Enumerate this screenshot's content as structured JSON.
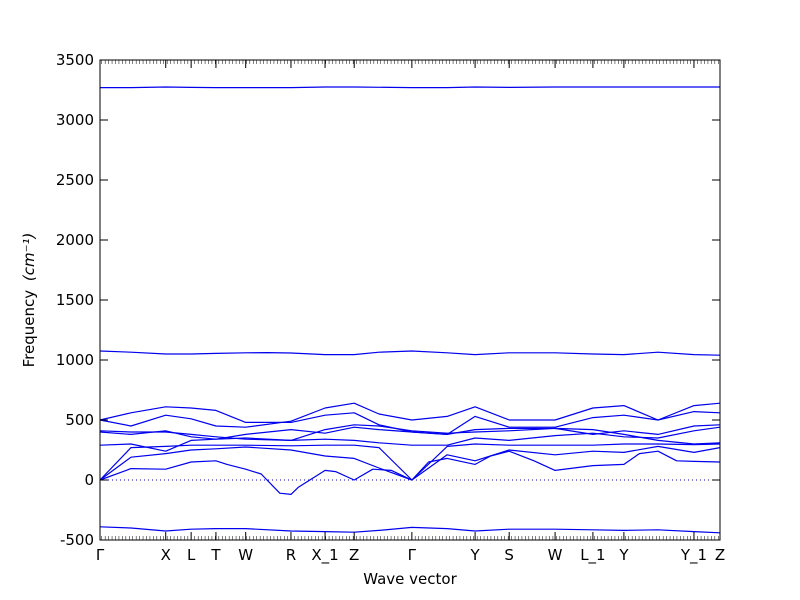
{
  "chart_data": {
    "type": "line",
    "title": "",
    "xlabel": "Wave vector",
    "ylabel": "Frequency",
    "ylabel_unit": "(cm⁻¹)",
    "ylim": [
      -500,
      3500
    ],
    "yticks": [
      -500,
      0,
      500,
      1000,
      1500,
      2000,
      2500,
      3000,
      3500
    ],
    "xlim": [
      0,
      1
    ],
    "kpoints": [
      {
        "label": "Γ",
        "x": 0.0
      },
      {
        "label": "X",
        "x": 0.106
      },
      {
        "label": "L",
        "x": 0.147
      },
      {
        "label": "T",
        "x": 0.187
      },
      {
        "label": "W",
        "x": 0.235
      },
      {
        "label": "R",
        "x": 0.308
      },
      {
        "label": "X_1",
        "x": 0.363
      },
      {
        "label": "Z",
        "x": 0.41
      },
      {
        "label": "Γ",
        "x": 0.503
      },
      {
        "label": "Y",
        "x": 0.605
      },
      {
        "label": "S",
        "x": 0.66
      },
      {
        "label": "W",
        "x": 0.734
      },
      {
        "label": "L_1",
        "x": 0.795
      },
      {
        "label": "Y",
        "x": 0.845
      },
      {
        "label": "Y_1",
        "x": 0.958
      },
      {
        "label": "Z",
        "x": 1.0
      }
    ],
    "zero_line": true,
    "series_color": "#0000ee",
    "series": [
      {
        "x": [
          0,
          0.05,
          0.106,
          0.147,
          0.187,
          0.235,
          0.308,
          0.363,
          0.41,
          0.503,
          0.56,
          0.605,
          0.66,
          0.734,
          0.795,
          0.845,
          0.9,
          0.958,
          1.0
        ],
        "values": [
          3270,
          3270,
          3275,
          3272,
          3270,
          3270,
          3270,
          3275,
          3275,
          3270,
          3270,
          3275,
          3272,
          3275,
          3275,
          3275,
          3275,
          3275,
          3275
        ]
      },
      {
        "x": [
          0,
          0.05,
          0.106,
          0.147,
          0.187,
          0.235,
          0.27,
          0.308,
          0.363,
          0.41,
          0.45,
          0.503,
          0.56,
          0.605,
          0.66,
          0.734,
          0.795,
          0.845,
          0.9,
          0.958,
          1.0
        ],
        "values": [
          1075,
          1065,
          1050,
          1050,
          1055,
          1060,
          1062,
          1058,
          1045,
          1045,
          1065,
          1075,
          1060,
          1045,
          1060,
          1060,
          1050,
          1045,
          1065,
          1045,
          1040
        ]
      },
      {
        "x": [
          0,
          0.05,
          0.106,
          0.147,
          0.187,
          0.235,
          0.308,
          0.363,
          0.41,
          0.45,
          0.503,
          0.56,
          0.605,
          0.66,
          0.734,
          0.795,
          0.845,
          0.9,
          0.958,
          1.0
        ],
        "values": [
          -390,
          -400,
          -425,
          -410,
          -405,
          -405,
          -425,
          -430,
          -435,
          -420,
          -395,
          -405,
          -425,
          -410,
          -410,
          -415,
          -420,
          -415,
          -430,
          -440
        ]
      },
      {
        "x": [
          0,
          0.05,
          0.106,
          0.147,
          0.187,
          0.205,
          0.235,
          0.26,
          0.29,
          0.308,
          0.32,
          0.363,
          0.38,
          0.41,
          0.44,
          0.47,
          0.503,
          0.53,
          0.56,
          0.605,
          0.63,
          0.66,
          0.7,
          0.734,
          0.795,
          0.845,
          0.87,
          0.9,
          0.93,
          0.958,
          1.0
        ],
        "values": [
          0,
          95,
          90,
          150,
          160,
          130,
          90,
          50,
          -110,
          -120,
          -60,
          80,
          70,
          0,
          90,
          80,
          0,
          150,
          180,
          130,
          200,
          240,
          160,
          80,
          120,
          130,
          220,
          240,
          160,
          155,
          150
        ]
      },
      {
        "x": [
          0,
          0.05,
          0.106,
          0.147,
          0.187,
          0.235,
          0.308,
          0.363,
          0.41,
          0.45,
          0.503,
          0.56,
          0.605,
          0.66,
          0.734,
          0.795,
          0.845,
          0.9,
          0.958,
          1.0
        ],
        "values": [
          0,
          190,
          220,
          250,
          260,
          275,
          250,
          200,
          180,
          100,
          0,
          210,
          160,
          250,
          210,
          240,
          230,
          280,
          230,
          270
        ]
      },
      {
        "x": [
          0,
          0.05,
          0.106,
          0.147,
          0.187,
          0.235,
          0.308,
          0.363,
          0.41,
          0.45,
          0.503,
          0.56,
          0.605,
          0.66,
          0.734,
          0.795,
          0.845,
          0.9,
          0.958,
          1.0
        ],
        "values": [
          0,
          270,
          280,
          290,
          290,
          290,
          285,
          290,
          290,
          270,
          0,
          280,
          300,
          290,
          290,
          290,
          300,
          300,
          295,
          300
        ]
      },
      {
        "x": [
          0,
          0.05,
          0.106,
          0.147,
          0.187,
          0.235,
          0.308,
          0.363,
          0.41,
          0.45,
          0.503,
          0.56,
          0.605,
          0.66,
          0.734,
          0.795,
          0.845,
          0.9,
          0.958,
          1.0
        ],
        "values": [
          290,
          300,
          240,
          330,
          340,
          350,
          330,
          340,
          330,
          310,
          290,
          290,
          350,
          330,
          370,
          390,
          360,
          350,
          410,
          440
        ]
      },
      {
        "x": [
          0,
          0.05,
          0.106,
          0.147,
          0.187,
          0.235,
          0.308,
          0.363,
          0.41,
          0.45,
          0.503,
          0.56,
          0.605,
          0.66,
          0.734,
          0.795,
          0.845,
          0.9,
          0.958,
          1.0
        ],
        "values": [
          400,
          380,
          410,
          360,
          340,
          380,
          420,
          390,
          440,
          420,
          400,
          380,
          420,
          430,
          430,
          380,
          410,
          380,
          450,
          460
        ]
      },
      {
        "x": [
          0,
          0.05,
          0.106,
          0.147,
          0.187,
          0.235,
          0.308,
          0.363,
          0.41,
          0.45,
          0.503,
          0.56,
          0.605,
          0.66,
          0.734,
          0.795,
          0.845,
          0.9,
          0.958,
          1.0
        ],
        "values": [
          500,
          450,
          540,
          510,
          450,
          440,
          490,
          600,
          640,
          550,
          500,
          530,
          610,
          500,
          500,
          600,
          620,
          500,
          620,
          640
        ]
      },
      {
        "x": [
          0,
          0.05,
          0.106,
          0.147,
          0.187,
          0.235,
          0.308,
          0.363,
          0.41,
          0.45,
          0.503,
          0.56,
          0.605,
          0.66,
          0.734,
          0.795,
          0.845,
          0.9,
          0.958,
          1.0
        ],
        "values": [
          500,
          560,
          610,
          600,
          580,
          480,
          480,
          540,
          560,
          460,
          400,
          380,
          530,
          440,
          440,
          520,
          540,
          500,
          570,
          560
        ]
      },
      {
        "x": [
          0,
          0.05,
          0.106,
          0.147,
          0.187,
          0.235,
          0.308,
          0.363,
          0.41,
          0.45,
          0.503,
          0.56,
          0.605,
          0.66,
          0.734,
          0.795,
          0.845,
          0.9,
          0.958,
          1.0
        ],
        "values": [
          410,
          400,
          400,
          380,
          360,
          340,
          330,
          420,
          460,
          450,
          410,
          390,
          400,
          410,
          430,
          420,
          380,
          330,
          300,
          310
        ]
      }
    ]
  }
}
